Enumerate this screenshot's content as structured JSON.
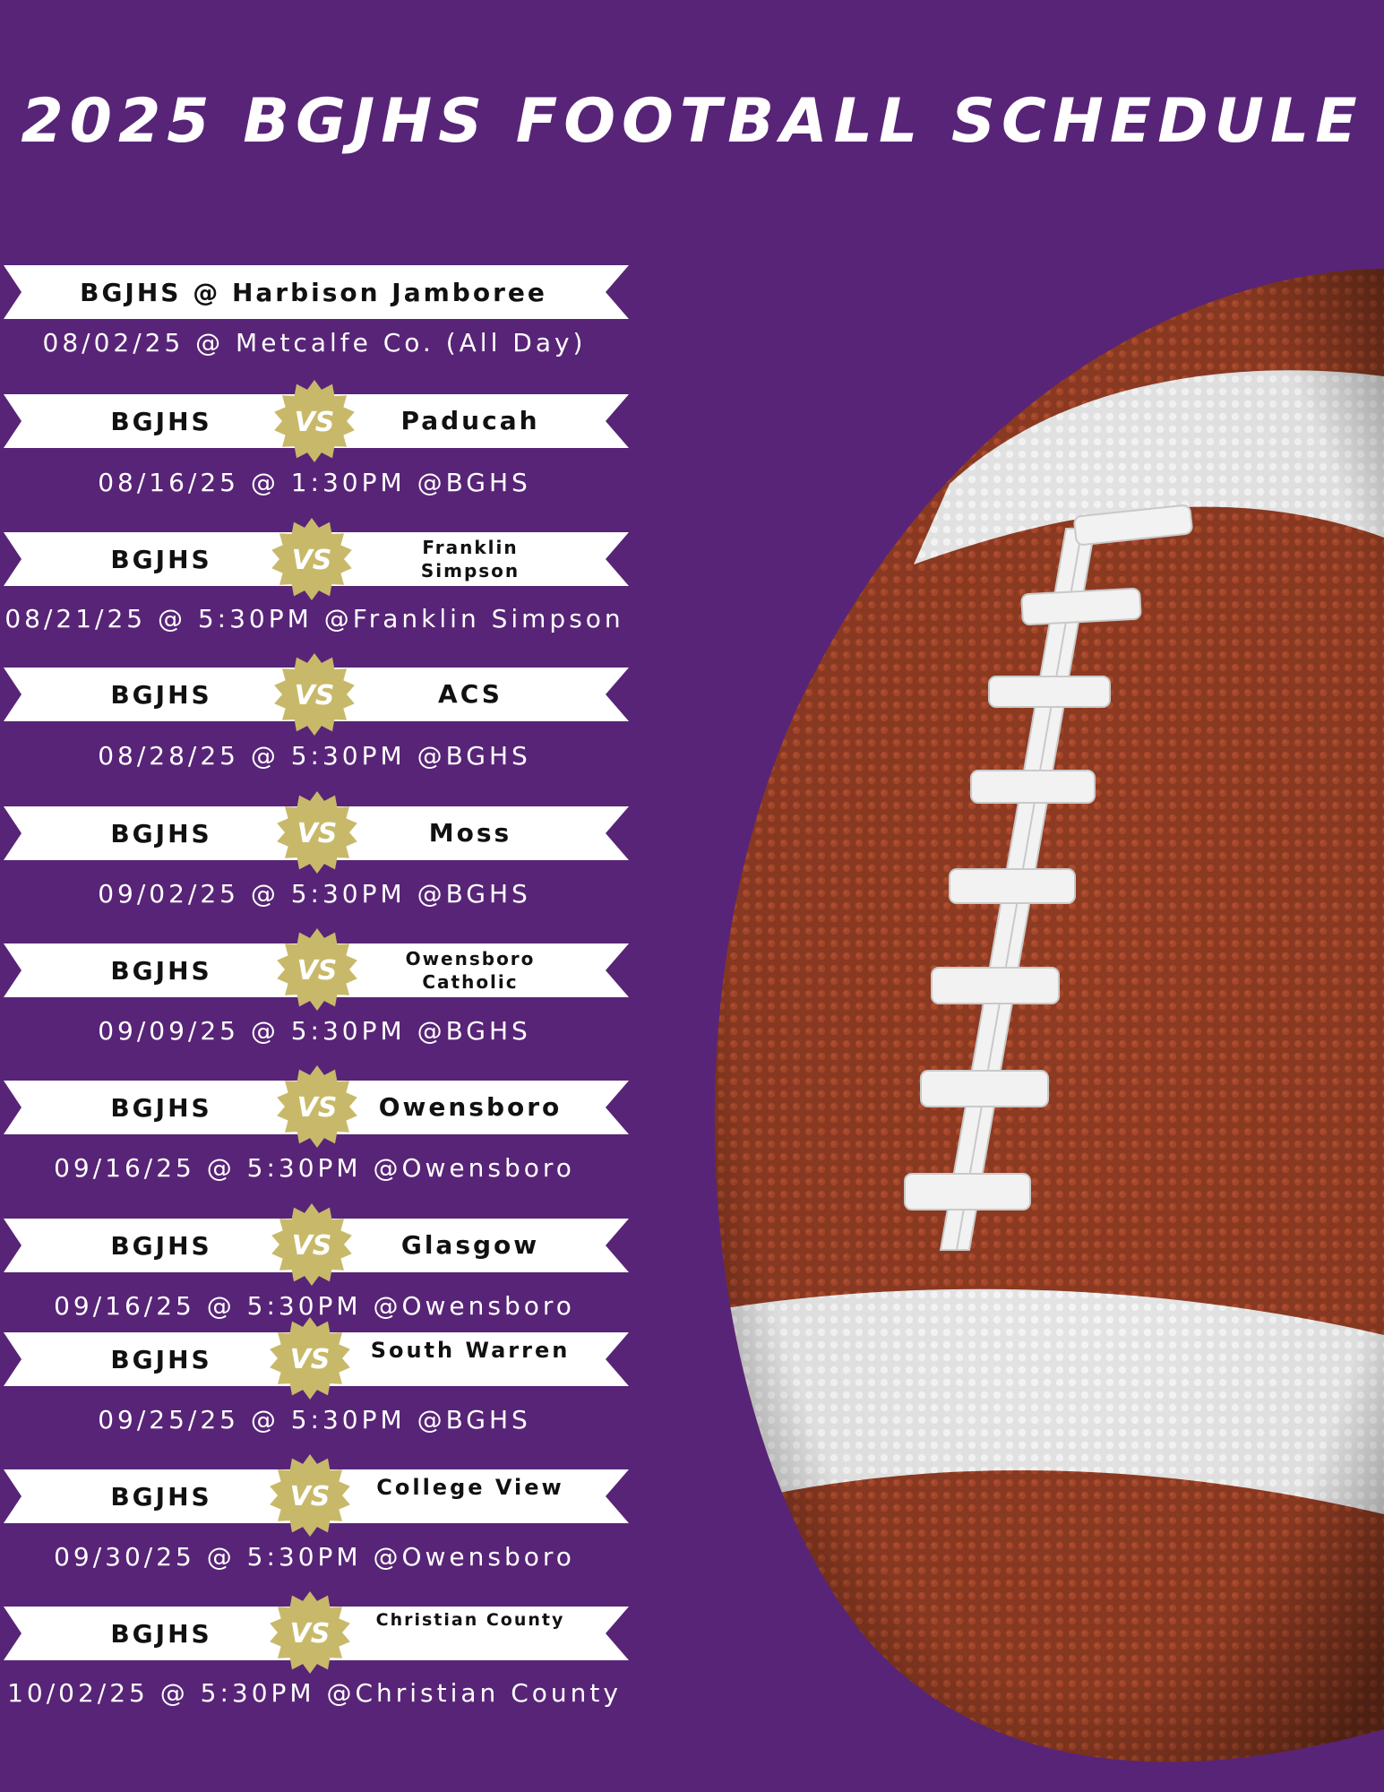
{
  "title": "2025 BGJHS FOOTBALL SCHEDULE",
  "vs_label": "VS",
  "colors": {
    "background": "#582477",
    "ribbon": "#ffffff",
    "vs_badge": "#c8b96a",
    "football": "#8b3a22",
    "laces": "#f2f2f2"
  },
  "jamboree": {
    "label": "BGJHS @ Harbison Jamboree",
    "info": "08/02/25 @ Metcalfe Co. (All Day)"
  },
  "games": [
    {
      "home": "BGJHS",
      "opponent": "Paducah",
      "info": "08/16/25 @ 1:30PM @BGHS"
    },
    {
      "home": "BGJHS",
      "opponent": "Franklin\nSimpson",
      "info": "08/21/25 @ 5:30PM @Franklin Simpson"
    },
    {
      "home": "BGJHS",
      "opponent": "ACS",
      "info": "08/28/25 @ 5:30PM @BGHS"
    },
    {
      "home": "BGJHS",
      "opponent": "Moss",
      "info": "09/02/25 @ 5:30PM @BGHS"
    },
    {
      "home": "BGJHS",
      "opponent": "Owensboro\nCatholic",
      "info": "09/09/25 @ 5:30PM @BGHS"
    },
    {
      "home": "BGJHS",
      "opponent": "Owensboro",
      "info": "09/16/25 @ 5:30PM @Owensboro"
    },
    {
      "home": "BGJHS",
      "opponent": "Glasgow",
      "info": "09/16/25 @ 5:30PM @Owensboro"
    },
    {
      "home": "BGJHS",
      "opponent": "South Warren",
      "info": "09/25/25 @ 5:30PM @BGHS"
    },
    {
      "home": "BGJHS",
      "opponent": "College View",
      "info": "09/30/25 @ 5:30PM @Owensboro"
    },
    {
      "home": "BGJHS",
      "opponent": "Christian County",
      "info": "10/02/25 @ 5:30PM @Christian County"
    }
  ]
}
